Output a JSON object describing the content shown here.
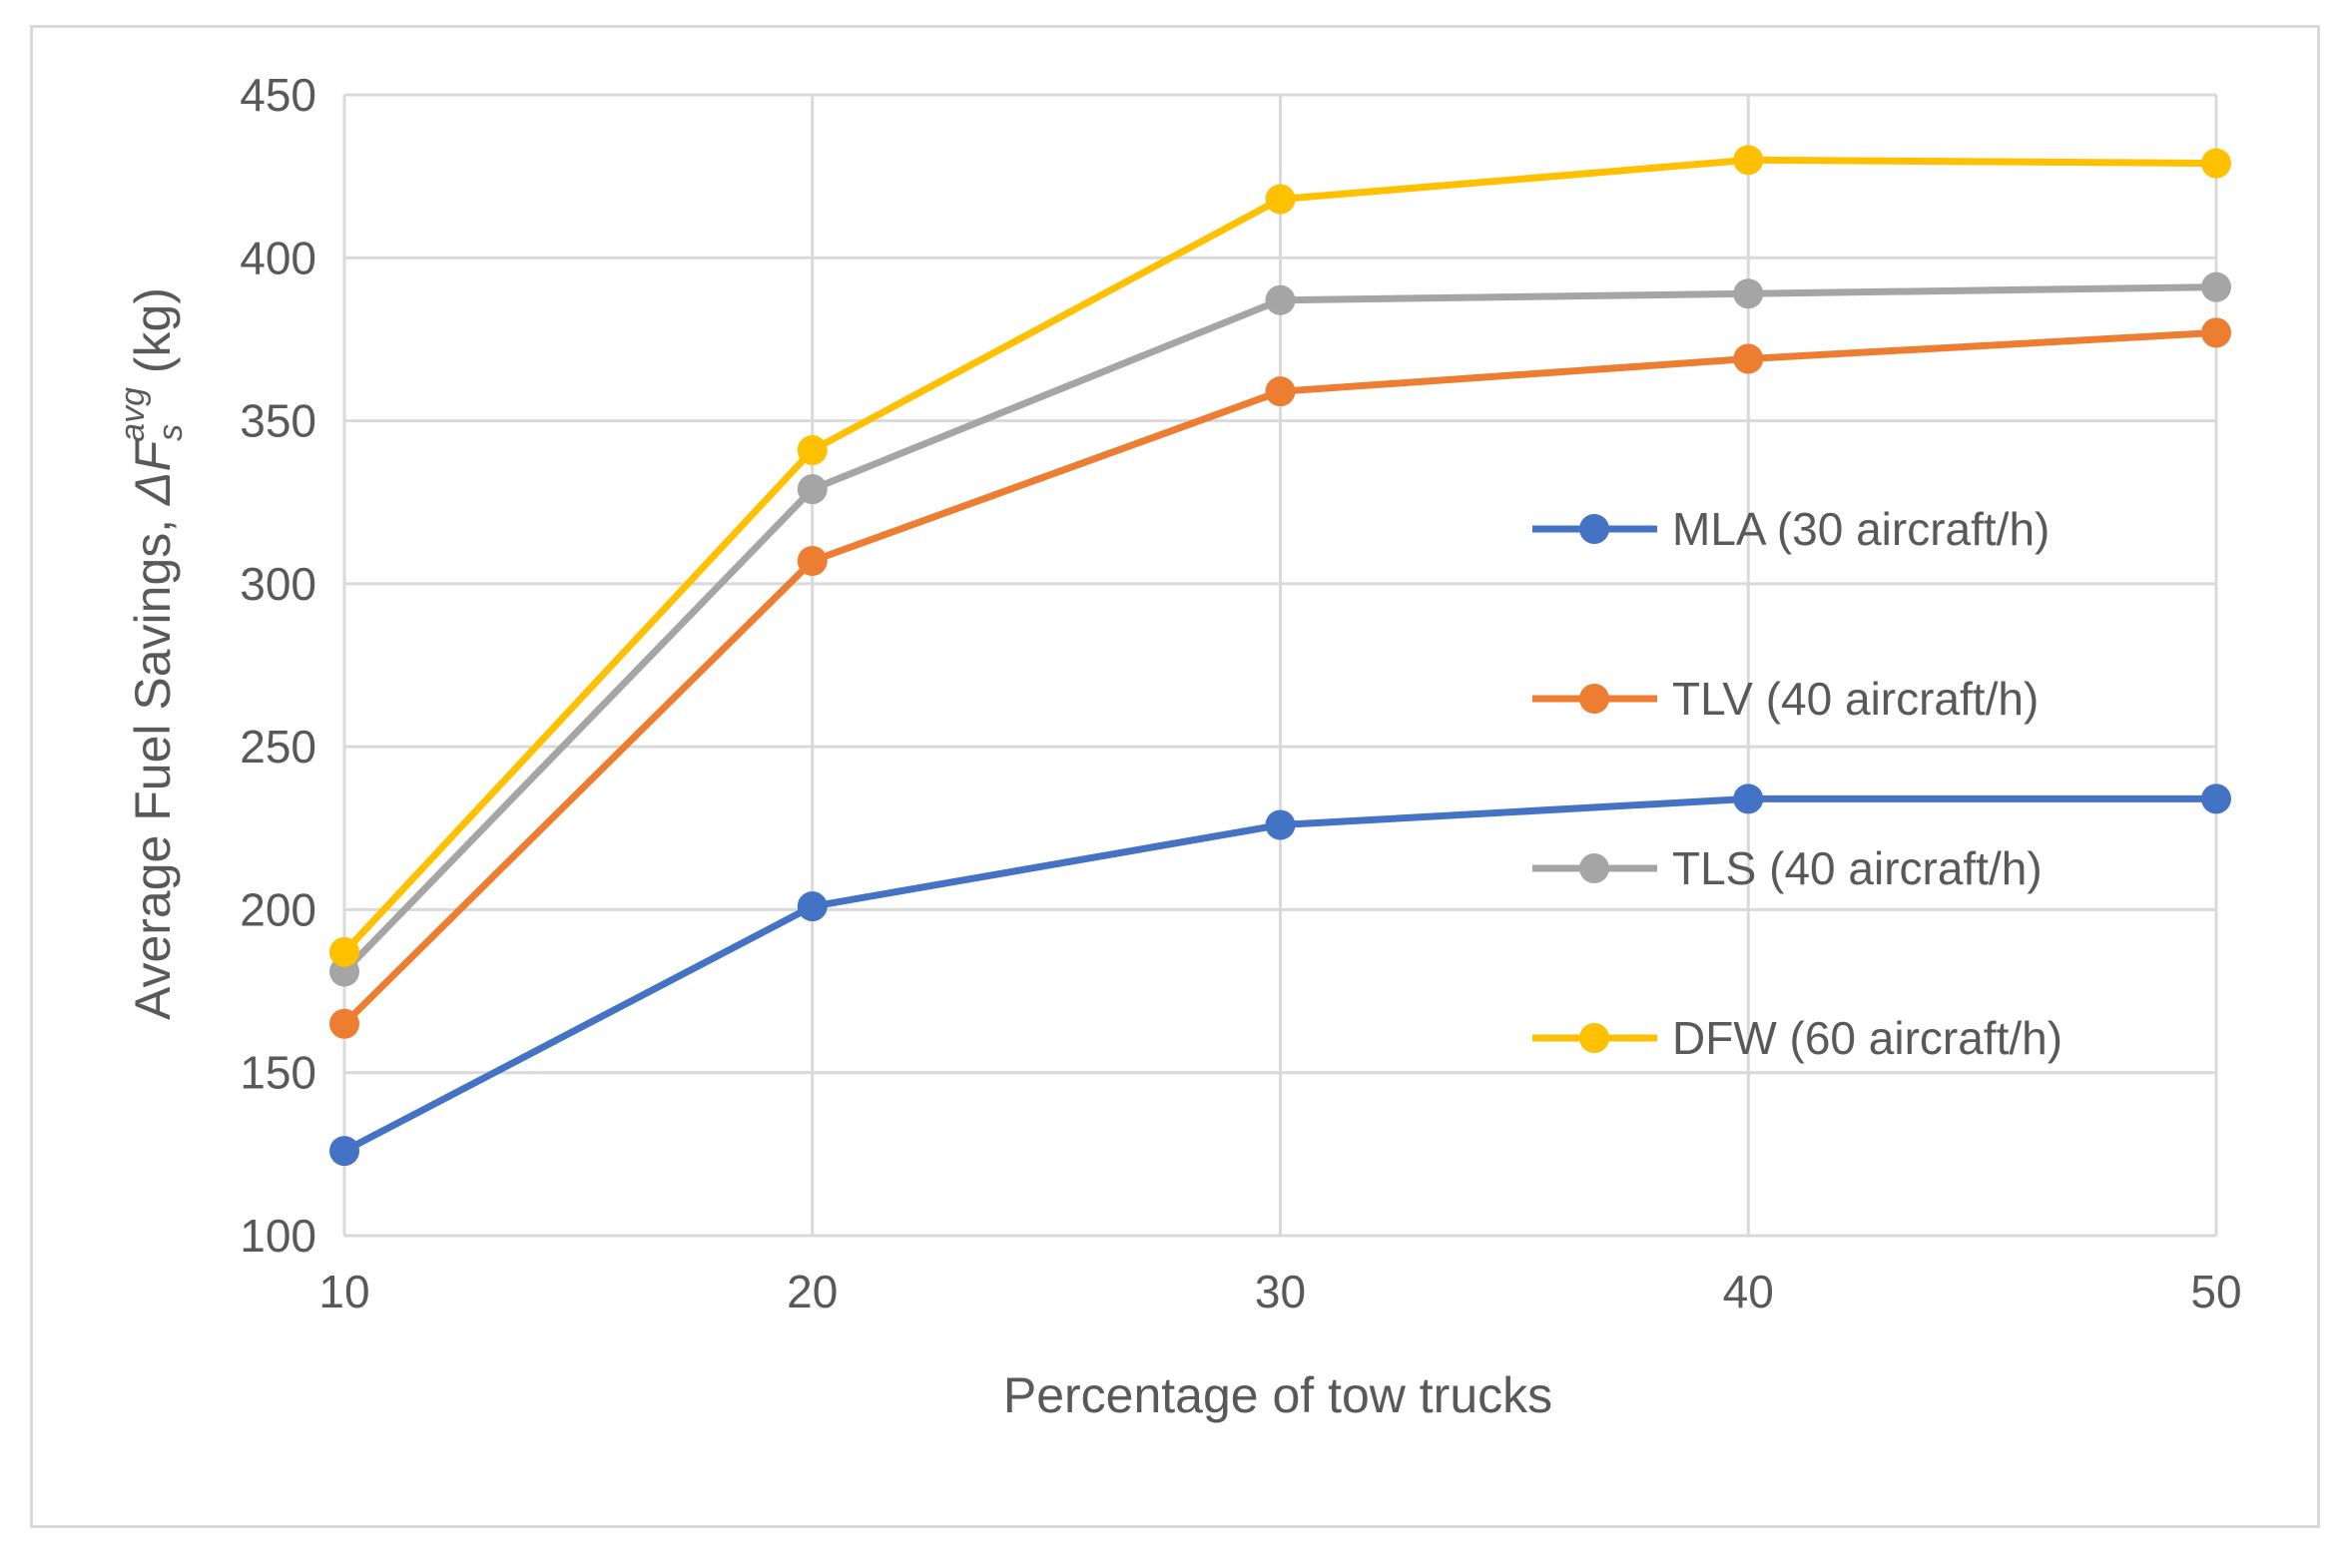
{
  "chart_data": {
    "type": "line",
    "title": "",
    "xlabel": "Percentage of tow trucks",
    "ylabel": {
      "prefix": "Average Fuel Savings, ",
      "symbol": "ΔF",
      "subscript": "s",
      "superscript": "avg",
      "unit": " (kg)"
    },
    "x": [
      10,
      20,
      30,
      40,
      50
    ],
    "xlim": [
      10,
      50
    ],
    "ylim": [
      100,
      450
    ],
    "x_ticks": [
      "10",
      "20",
      "30",
      "40",
      "50"
    ],
    "y_ticks": [
      "100",
      "150",
      "200",
      "250",
      "300",
      "350",
      "400",
      "450"
    ],
    "grid": true,
    "legend_position": "right",
    "series": [
      {
        "name": "MLA (30 aircraft/h)",
        "color": "#4472c4",
        "values": [
          126,
          201,
          226,
          234,
          234
        ]
      },
      {
        "name": "TLV (40 aircraft/h)",
        "color": "#ed7d31",
        "values": [
          165,
          307,
          359,
          369,
          377
        ]
      },
      {
        "name": "TLS (40 aircraft/h)",
        "color": "#a5a5a5",
        "values": [
          181,
          329,
          387,
          389,
          391
        ]
      },
      {
        "name": "DFW (60 aircraft/h)",
        "color": "#ffc000",
        "values": [
          187,
          341,
          418,
          430,
          429
        ]
      }
    ]
  }
}
